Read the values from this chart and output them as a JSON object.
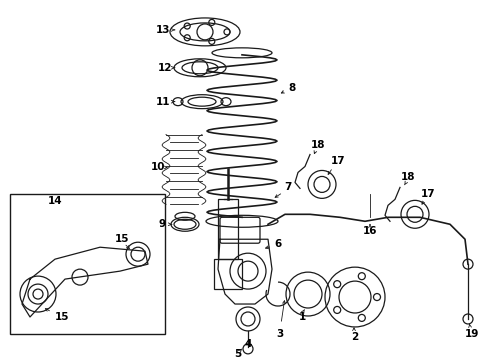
{
  "background_color": "#ffffff",
  "fig_width": 4.9,
  "fig_height": 3.6,
  "dpi": 100,
  "line_color": "#1a1a1a",
  "label_fontsize": 7.5,
  "label_color": "#000000",
  "arrow_color": "#000000"
}
